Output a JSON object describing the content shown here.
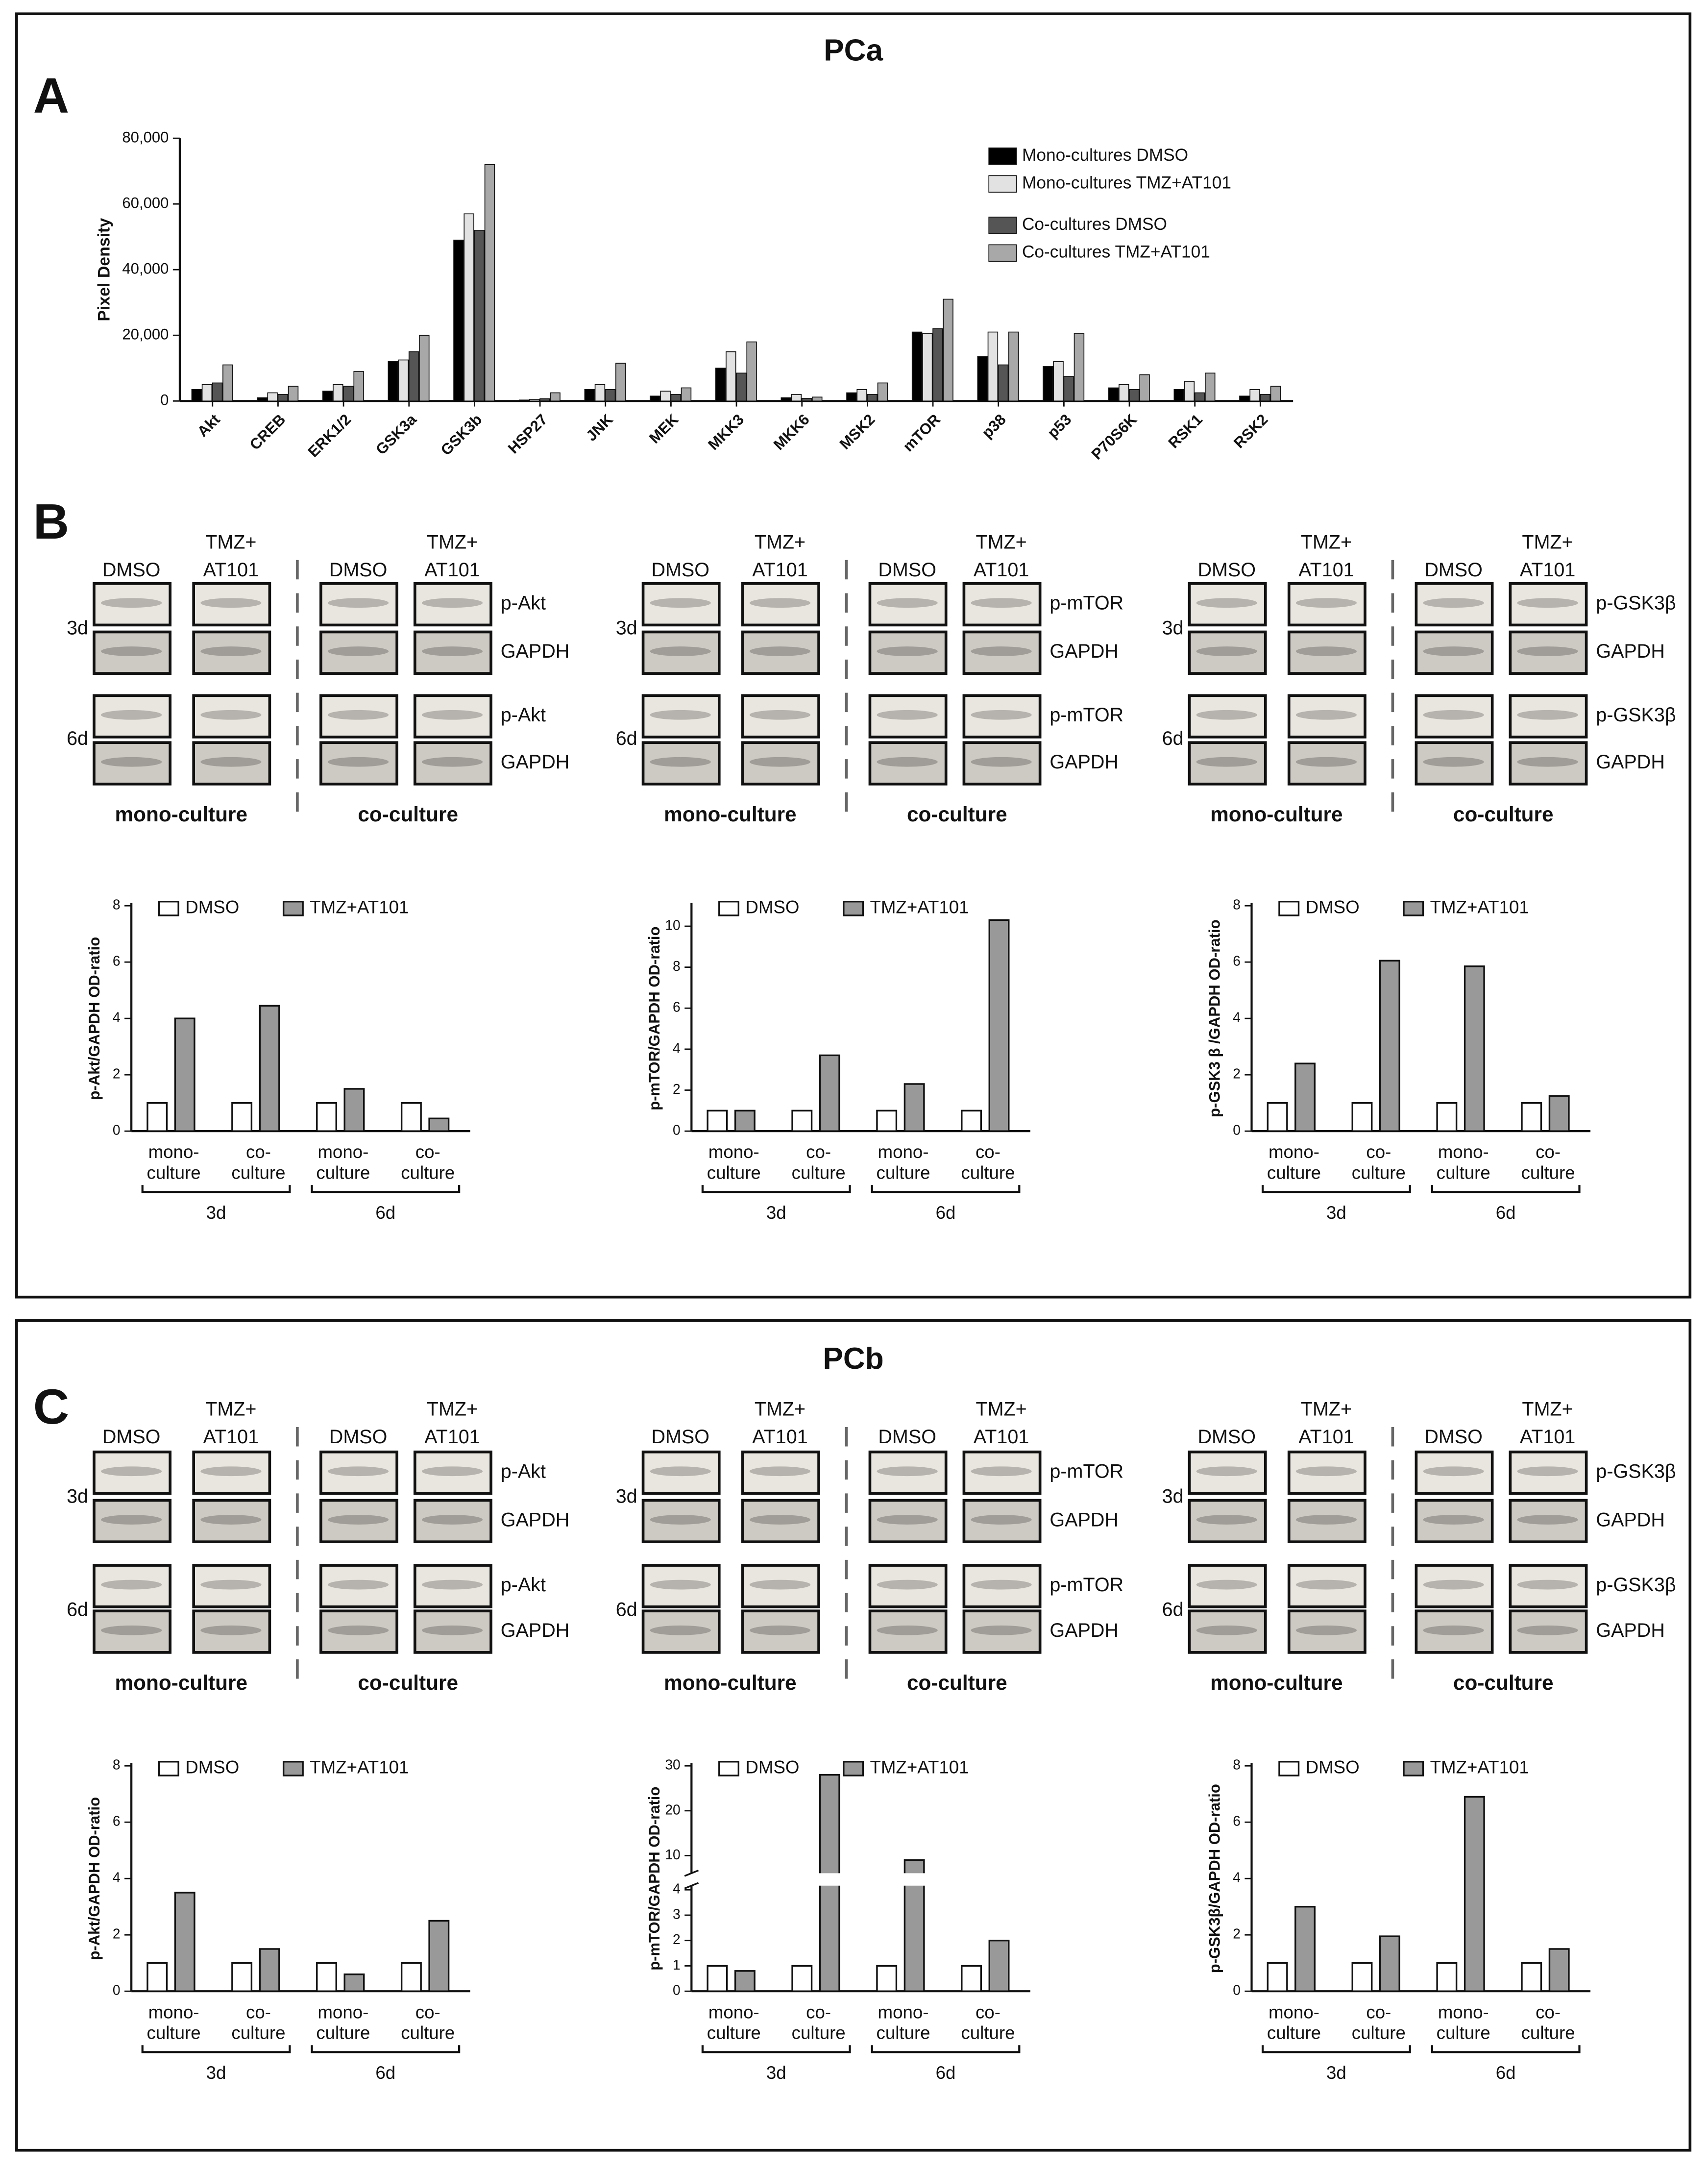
{
  "frames": [
    {
      "title": "PCa",
      "letters": [
        "A",
        "B"
      ]
    },
    {
      "title": "PCb",
      "letters": [
        "C"
      ]
    }
  ],
  "chart_data": [
    {
      "type": "bar",
      "ylabel": "Pixel Density",
      "legend": "upper right",
      "categories": [
        "Akt",
        "CREB",
        "ERK1/2",
        "GSK3a",
        "GSK3b",
        "HSP27",
        "JNK",
        "MEK",
        "MKK3",
        "MKK6",
        "MSK2",
        "mTOR",
        "p38",
        "p53",
        "P70S6K",
        "RSK1",
        "RSK2"
      ],
      "series": [
        {
          "name": "Mono-cultures DMSO",
          "color": "#000000",
          "values": [
            3500,
            1000,
            3000,
            12000,
            49000,
            300,
            3500,
            1500,
            10000,
            1000,
            2500,
            21000,
            13500,
            10500,
            4000,
            3500,
            1500
          ]
        },
        {
          "name": "Mono-cultures TMZ+AT101",
          "color": "#e2e2e2",
          "values": [
            5000,
            2500,
            5000,
            12500,
            57000,
            500,
            5000,
            3000,
            15000,
            2000,
            3500,
            20500,
            21000,
            12000,
            5000,
            6000,
            3500
          ]
        },
        {
          "name": "Co-cultures DMSO",
          "color": "#555555",
          "values": [
            5500,
            2000,
            4500,
            15000,
            52000,
            700,
            3500,
            2000,
            8500,
            800,
            2000,
            22000,
            11000,
            7500,
            3500,
            2500,
            2000
          ]
        },
        {
          "name": "Co-cultures TMZ+AT101",
          "color": "#a8a8a8",
          "values": [
            11000,
            4500,
            9000,
            20000,
            72000,
            2500,
            11500,
            4000,
            18000,
            1200,
            5500,
            31000,
            21000,
            20500,
            8000,
            8500,
            4500
          ]
        }
      ],
      "ylim": [
        0,
        80000
      ],
      "yticks": [
        0,
        {
          "value": 20000,
          "label": "20,000"
        },
        {
          "value": 40000,
          "label": "40,000"
        },
        {
          "value": 60000,
          "label": "60,000"
        },
        {
          "value": 80000,
          "label": "80,000"
        }
      ]
    },
    {
      "type": "bar",
      "ylabel": "p-Akt/GAPDH OD-ratio",
      "legend": "top",
      "categories": [
        "mono-culture",
        "co-culture",
        "mono-culture",
        "co-culture"
      ],
      "group_labels": [
        "3d",
        "6d"
      ],
      "series": [
        {
          "name": "DMSO",
          "color": "#ffffff",
          "values": [
            1,
            1,
            1,
            1
          ]
        },
        {
          "name": "TMZ+AT101",
          "color": "#999999",
          "values": [
            4,
            4.45,
            1.5,
            0.45
          ]
        }
      ],
      "ylim": [
        0,
        8
      ],
      "yticks": [
        0,
        2,
        4,
        6,
        8
      ]
    },
    {
      "type": "bar",
      "ylabel": "p-mTOR/GAPDH OD-ratio",
      "legend": "top",
      "categories": [
        "mono-culture",
        "co-culture",
        "mono-culture",
        "co-culture"
      ],
      "group_labels": [
        "3d",
        "6d"
      ],
      "series": [
        {
          "name": "DMSO",
          "color": "#ffffff",
          "values": [
            1,
            1,
            1,
            1
          ]
        },
        {
          "name": "TMZ+AT101",
          "color": "#999999",
          "values": [
            1,
            3.7,
            2.3,
            10.3
          ]
        }
      ],
      "ylim": [
        0,
        11
      ],
      "yticks": [
        0,
        2,
        4,
        6,
        8,
        10
      ]
    },
    {
      "type": "bar",
      "ylabel": "p-GSK3 β /GAPDH OD-ratio",
      "legend": "top",
      "categories": [
        "mono-culture",
        "co-culture",
        "mono-culture",
        "co-culture"
      ],
      "group_labels": [
        "3d",
        "6d"
      ],
      "series": [
        {
          "name": "DMSO",
          "color": "#ffffff",
          "values": [
            1,
            1,
            1,
            1
          ]
        },
        {
          "name": "TMZ+AT101",
          "color": "#999999",
          "values": [
            2.4,
            6.05,
            5.85,
            1.25
          ]
        }
      ],
      "ylim": [
        0,
        8
      ],
      "yticks": [
        0,
        2,
        4,
        6,
        8
      ]
    },
    {
      "type": "bar",
      "ylabel": "p-Akt/GAPDH OD-ratio",
      "legend": "top",
      "categories": [
        "mono-culture",
        "co-culture",
        "mono-culture",
        "co-culture"
      ],
      "group_labels": [
        "3d",
        "6d"
      ],
      "series": [
        {
          "name": "DMSO",
          "color": "#ffffff",
          "values": [
            1,
            1,
            1,
            1
          ]
        },
        {
          "name": "TMZ+AT101",
          "color": "#999999",
          "values": [
            3.5,
            1.5,
            0.6,
            2.5
          ]
        }
      ],
      "ylim": [
        0,
        8
      ],
      "yticks": [
        0,
        2,
        4,
        6,
        8
      ]
    },
    {
      "type": "bar",
      "ylabel": "p-mTOR/GAPDH OD-ratio",
      "legend": "top",
      "categories": [
        "mono-culture",
        "co-culture",
        "mono-culture",
        "co-culture"
      ],
      "group_labels": [
        "3d",
        "6d"
      ],
      "series": [
        {
          "name": "DMSO",
          "color": "#ffffff",
          "values": [
            1,
            1,
            1,
            1
          ]
        },
        {
          "name": "TMZ+AT101",
          "color": "#999999",
          "values": [
            0.8,
            28,
            9,
            2
          ]
        }
      ],
      "ylim": [
        0,
        30
      ],
      "ybreak": [
        4,
        7
      ],
      "yticks": [
        0,
        1,
        2,
        3,
        4,
        10,
        20,
        30
      ]
    },
    {
      "type": "bar",
      "ylabel": "p-GSK3β/GAPDH OD-ratio",
      "legend": "top",
      "categories": [
        "mono-culture",
        "co-culture",
        "mono-culture",
        "co-culture"
      ],
      "group_labels": [
        "3d",
        "6d"
      ],
      "series": [
        {
          "name": "DMSO",
          "color": "#ffffff",
          "values": [
            1,
            1,
            1,
            1
          ]
        },
        {
          "name": "TMZ+AT101",
          "color": "#999999",
          "values": [
            3,
            1.95,
            6.9,
            1.5
          ]
        }
      ],
      "ylim": [
        0,
        8
      ],
      "yticks": [
        0,
        2,
        4,
        6,
        8
      ]
    }
  ],
  "blots": [
    {
      "rows": [
        "3d",
        "6d"
      ],
      "proteins": [
        "p-Akt",
        "GAPDH",
        "p-Akt",
        "GAPDH"
      ],
      "groups": [
        {
          "label": "mono-culture",
          "cols": [
            "DMSO",
            [
              "TMZ+",
              "AT101"
            ]
          ]
        },
        {
          "label": "co-culture",
          "cols": [
            "DMSO",
            [
              "TMZ+",
              "AT101"
            ]
          ]
        }
      ]
    },
    {
      "rows": [
        "3d",
        "6d"
      ],
      "proteins": [
        "p-mTOR",
        "GAPDH",
        "p-mTOR",
        "GAPDH"
      ],
      "groups": [
        {
          "label": "mono-culture",
          "cols": [
            "DMSO",
            [
              "TMZ+",
              "AT101"
            ]
          ]
        },
        {
          "label": "co-culture",
          "cols": [
            "DMSO",
            [
              "TMZ+",
              "AT101"
            ]
          ]
        }
      ]
    },
    {
      "rows": [
        "3d",
        "6d"
      ],
      "proteins": [
        "p-GSK3β",
        "GAPDH",
        "p-GSK3β",
        "GAPDH"
      ],
      "groups": [
        {
          "label": "mono-culture",
          "cols": [
            "DMSO",
            [
              "TMZ+",
              "AT101"
            ]
          ]
        },
        {
          "label": "co-culture",
          "cols": [
            "DMSO",
            [
              "TMZ+",
              "AT101"
            ]
          ]
        }
      ]
    },
    {
      "rows": [
        "3d",
        "6d"
      ],
      "proteins": [
        "p-Akt",
        "GAPDH",
        "p-Akt",
        "GAPDH"
      ],
      "groups": [
        {
          "label": "mono-culture",
          "cols": [
            "DMSO",
            [
              "TMZ+",
              "AT101"
            ]
          ]
        },
        {
          "label": "co-culture",
          "cols": [
            "DMSO",
            [
              "TMZ+",
              "AT101"
            ]
          ]
        }
      ]
    },
    {
      "rows": [
        "3d",
        "6d"
      ],
      "proteins": [
        "p-mTOR",
        "GAPDH",
        "p-mTOR",
        "GAPDH"
      ],
      "groups": [
        {
          "label": "mono-culture",
          "cols": [
            "DMSO",
            [
              "TMZ+",
              "AT101"
            ]
          ]
        },
        {
          "label": "co-culture",
          "cols": [
            "DMSO",
            [
              "TMZ+",
              "AT101"
            ]
          ]
        }
      ]
    },
    {
      "rows": [
        "3d",
        "6d"
      ],
      "proteins": [
        "p-GSK3β",
        "GAPDH",
        "p-GSK3β",
        "GAPDH"
      ],
      "groups": [
        {
          "label": "mono-culture",
          "cols": [
            "DMSO",
            [
              "TMZ+",
              "AT101"
            ]
          ]
        },
        {
          "label": "co-culture",
          "cols": [
            "DMSO",
            [
              "TMZ+",
              "AT101"
            ]
          ]
        }
      ]
    }
  ]
}
